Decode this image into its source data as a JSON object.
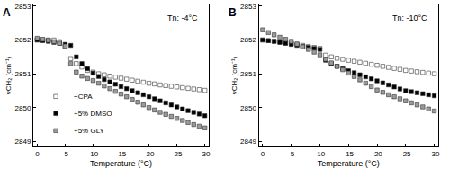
{
  "chart_data": [
    {
      "type": "scatter",
      "title": "A",
      "annotations": [
        "Tn: -4°C"
      ],
      "x_label": "Temperature (°C)",
      "y_label": "νCH₂ (cm⁻¹)",
      "marker": "square",
      "grid": false,
      "legend": "lower left",
      "xlim": [
        0.7,
        -30.7
      ],
      "xticks": [
        0,
        -5,
        -10,
        -15,
        -20,
        -25,
        -30
      ],
      "ylim": [
        2848.85,
        2853.05
      ],
      "yticks": [
        2849,
        2850,
        2851,
        2852,
        2853
      ],
      "x": [
        0,
        -1,
        -2,
        -3,
        -4,
        -5,
        -6,
        -7,
        -8,
        -9,
        -10,
        -11,
        -12,
        -13,
        -14,
        -15,
        -16,
        -17,
        -18,
        -19,
        -20,
        -21,
        -22,
        -23,
        -24,
        -25,
        -26,
        -27,
        -28,
        -29,
        -30
      ],
      "series": [
        {
          "name": "−CPA",
          "color": "#ffffff",
          "values": [
            2852.0,
            2852.0,
            2852.0,
            2852.0,
            2851.95,
            2851.8,
            2851.45,
            2851.3,
            2851.2,
            2851.1,
            2851.05,
            2851.0,
            2850.97,
            2850.93,
            2850.9,
            2850.87,
            2850.84,
            2850.81,
            2850.78,
            2850.75,
            2850.72,
            2850.7,
            2850.67,
            2850.65,
            2850.63,
            2850.61,
            2850.59,
            2850.57,
            2850.55,
            2850.53,
            2850.51
          ]
        },
        {
          "name": "+5% DMSO",
          "color": "#000000",
          "values": [
            2852.0,
            2851.98,
            2851.96,
            2851.93,
            2851.9,
            2851.87,
            2851.84,
            2851.5,
            2851.3,
            2851.15,
            2851.02,
            2850.92,
            2850.83,
            2850.76,
            2850.69,
            2850.62,
            2850.56,
            2850.5,
            2850.44,
            2850.38,
            2850.32,
            2850.26,
            2850.2,
            2850.14,
            2850.08,
            2850.02,
            2849.96,
            2849.91,
            2849.86,
            2849.81,
            2849.76
          ]
        },
        {
          "name": "+5% GLY",
          "color": "#9a9a9a",
          "values": [
            2852.05,
            2852.02,
            2851.99,
            2851.95,
            2851.9,
            2851.82,
            2851.3,
            2851.05,
            2850.93,
            2850.86,
            2850.8,
            2850.72,
            2850.64,
            2850.56,
            2850.48,
            2850.4,
            2850.32,
            2850.24,
            2850.16,
            2850.08,
            2850.0,
            2849.93,
            2849.86,
            2849.8,
            2849.74,
            2849.68,
            2849.62,
            2849.56,
            2849.5,
            2849.45,
            2849.4
          ]
        }
      ]
    },
    {
      "type": "scatter",
      "title": "B",
      "annotations": [
        "Tn: -10°C"
      ],
      "x_label": "Temperature (°C)",
      "y_label": "νCH₂ (cm⁻¹)",
      "marker": "square",
      "grid": false,
      "xlim": [
        0.7,
        -30.7
      ],
      "xticks": [
        0,
        -5,
        -10,
        -15,
        -20,
        -25,
        -30
      ],
      "ylim": [
        2848.85,
        2853.05
      ],
      "yticks": [
        2849,
        2850,
        2851,
        2852,
        2853
      ],
      "x": [
        0,
        -1,
        -2,
        -3,
        -4,
        -5,
        -6,
        -7,
        -8,
        -9,
        -10,
        -11,
        -12,
        -13,
        -14,
        -15,
        -16,
        -17,
        -18,
        -19,
        -20,
        -21,
        -22,
        -23,
        -24,
        -25,
        -26,
        -27,
        -28,
        -29,
        -30
      ],
      "series": [
        {
          "name": "−CPA",
          "color": "#ffffff",
          "values": [
            2852.0,
            2851.98,
            2851.96,
            2851.94,
            2851.92,
            2851.9,
            2851.87,
            2851.84,
            2851.81,
            2851.78,
            2851.75,
            2851.55,
            2851.5,
            2851.46,
            2851.43,
            2851.4,
            2851.37,
            2851.34,
            2851.31,
            2851.28,
            2851.25,
            2851.22,
            2851.19,
            2851.16,
            2851.13,
            2851.1,
            2851.08,
            2851.06,
            2851.04,
            2851.02,
            2851.0
          ]
        },
        {
          "name": "+5% DMSO",
          "color": "#000000",
          "values": [
            2852.0,
            2851.98,
            2851.96,
            2851.93,
            2851.9,
            2851.87,
            2851.84,
            2851.81,
            2851.78,
            2851.75,
            2851.72,
            2851.4,
            2851.3,
            2851.22,
            2851.15,
            2851.09,
            2851.03,
            2850.97,
            2850.91,
            2850.85,
            2850.79,
            2850.73,
            2850.67,
            2850.61,
            2850.55,
            2850.5,
            2850.47,
            2850.44,
            2850.41,
            2850.38,
            2850.35
          ]
        },
        {
          "name": "+5% GLY",
          "color": "#9a9a9a",
          "values": [
            2852.3,
            2852.22,
            2852.15,
            2852.08,
            2852.02,
            2851.96,
            2851.88,
            2851.8,
            2851.72,
            2851.64,
            2851.56,
            2851.43,
            2851.32,
            2851.22,
            2851.12,
            2851.02,
            2850.92,
            2850.82,
            2850.72,
            2850.62,
            2850.52,
            2850.45,
            2850.38,
            2850.32,
            2850.26,
            2850.2,
            2850.14,
            2850.08,
            2850.02,
            2849.96,
            2849.9
          ]
        }
      ]
    }
  ]
}
